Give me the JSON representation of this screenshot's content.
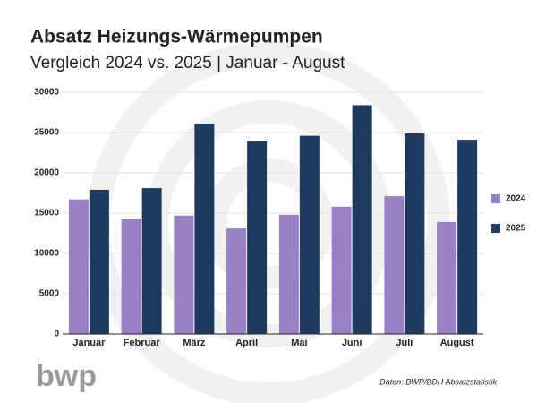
{
  "chart_data": {
    "type": "bar",
    "title": "Absatz Heizungs-Wärmepumpen",
    "subtitle": "Vergleich 2024 vs. 2025 | Januar - August",
    "categories": [
      "Januar",
      "Februar",
      "März",
      "April",
      "Mai",
      "Juni",
      "Juli",
      "August"
    ],
    "series": [
      {
        "name": "2024",
        "color": "#9b7fc4",
        "values": [
          16700,
          14300,
          14700,
          13100,
          14800,
          15800,
          17100,
          13900
        ]
      },
      {
        "name": "2025",
        "color": "#1e3a5f",
        "values": [
          17900,
          18100,
          26100,
          23900,
          24600,
          28400,
          24900,
          24100
        ]
      }
    ],
    "ylim": [
      0,
      30000
    ],
    "yticks": [
      0,
      5000,
      10000,
      15000,
      20000,
      25000,
      30000
    ],
    "grid": true,
    "legend": "right",
    "source": "Daten: BWP/BDH Absatzstatistik",
    "logo": "bwp"
  }
}
